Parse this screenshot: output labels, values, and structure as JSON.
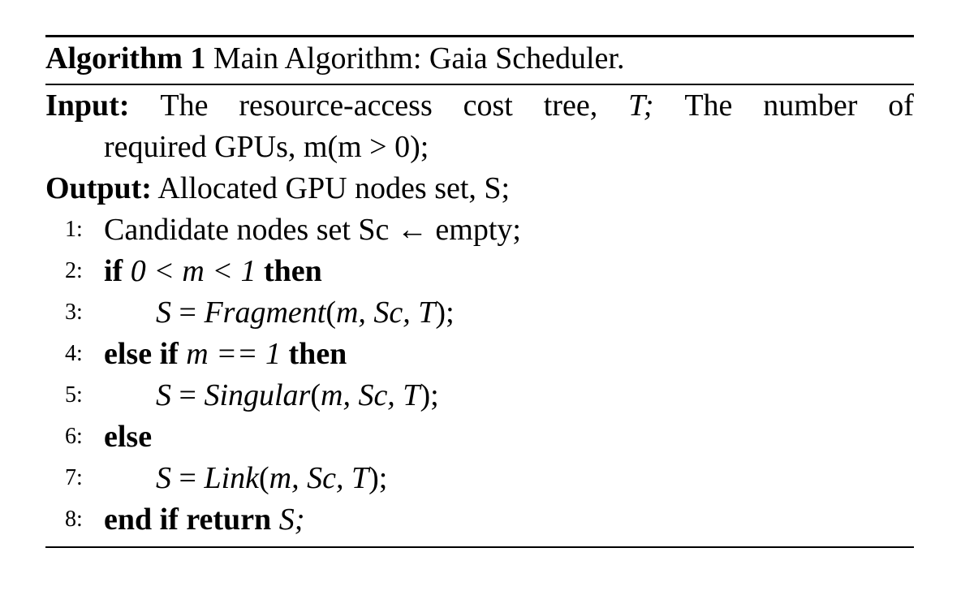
{
  "caption": {
    "label": "Algorithm 1",
    "title": "Main Algorithm: Gaia Scheduler."
  },
  "input": {
    "label": "Input:",
    "words": [
      "The",
      "resource-access",
      "cost",
      "tree,",
      "T;",
      "The",
      "number",
      "of"
    ],
    "line2": "required GPUs, m(m > 0);"
  },
  "output": {
    "label": "Output:",
    "text": "Allocated GPU nodes set, S;"
  },
  "steps": [
    {
      "num": "1:",
      "text": "Candidate nodes set Sc ← empty;"
    },
    {
      "num": "2:",
      "kw1": "if",
      "cond": "0 < m < 1",
      "kw2": "then"
    },
    {
      "num": "3:",
      "lhs": "S",
      "fn": "Fragment",
      "args": "m, Sc, T"
    },
    {
      "num": "4:",
      "kw1": "else if",
      "cond": "m == 1",
      "kw2": "then"
    },
    {
      "num": "5:",
      "lhs": "S",
      "fn": "Singular",
      "args": "m, Sc, T"
    },
    {
      "num": "6:",
      "kw1": "else"
    },
    {
      "num": "7:",
      "lhs": "S",
      "fn": "Link",
      "args": "m, Sc, T"
    },
    {
      "num": "8:",
      "kw1": "end if",
      "kw2": "return",
      "ret": "S;"
    }
  ]
}
